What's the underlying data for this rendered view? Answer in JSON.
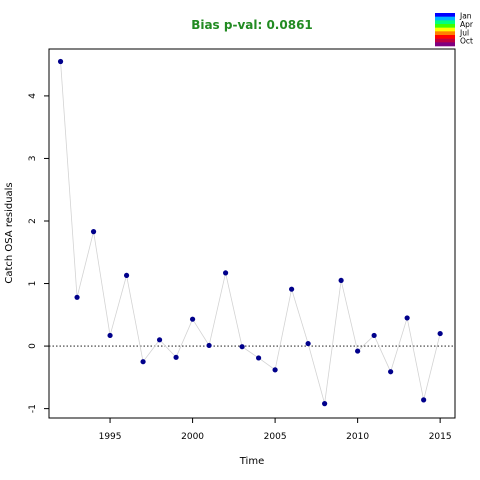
{
  "chart_data": {
    "type": "scatter",
    "title": "Bias p-val: 0.0861",
    "title_color": "#228B22",
    "xlabel": "Time",
    "ylabel": "Catch OSA residuals",
    "xlim": [
      1991.3,
      2015.9
    ],
    "ylim": [
      -1.15,
      4.75
    ],
    "xticks": [
      1995,
      2000,
      2005,
      2010,
      2015
    ],
    "yticks": [
      -1,
      0,
      1,
      2,
      3,
      4
    ],
    "reference_line_y": 0,
    "line_color": "#d3d3d3",
    "point_color": "#00008B",
    "legend": {
      "labels": [
        "Jan",
        "Apr",
        "Jul",
        "Oct"
      ],
      "colors": [
        "#0000ff",
        "#00b4ff",
        "#00ff80",
        "#40ff00",
        "#ffff00",
        "#ff8000",
        "#ff0000",
        "#c00040",
        "#800080"
      ]
    },
    "x": [
      1992,
      1993,
      1994,
      1995,
      1996,
      1997,
      1998,
      1999,
      2000,
      2001,
      2002,
      2003,
      2004,
      2005,
      2006,
      2007,
      2008,
      2009,
      2010,
      2011,
      2012,
      2013,
      2014,
      2015
    ],
    "y": [
      4.55,
      0.78,
      1.83,
      0.17,
      1.13,
      -0.25,
      0.1,
      -0.18,
      0.43,
      0.01,
      1.17,
      -0.01,
      -0.19,
      -0.38,
      0.91,
      0.04,
      -0.92,
      1.05,
      -0.08,
      0.17,
      -0.41,
      0.45,
      -0.86,
      0.2
    ]
  }
}
